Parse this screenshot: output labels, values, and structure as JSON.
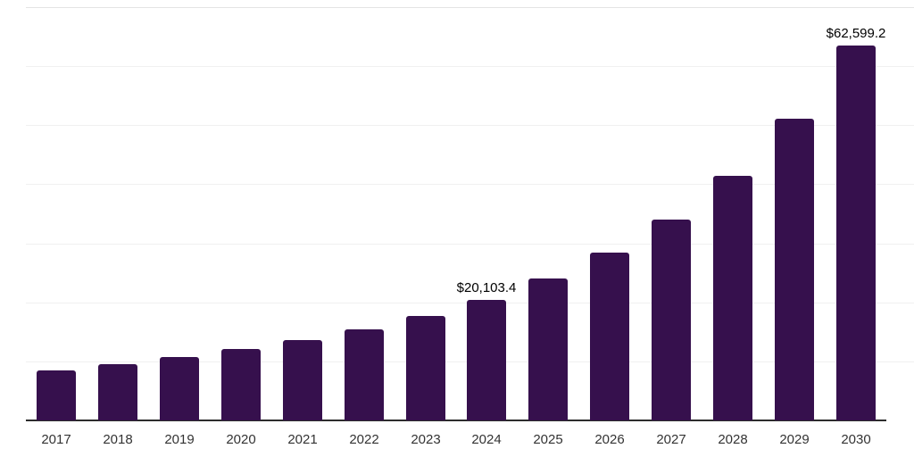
{
  "chart_data": {
    "type": "bar",
    "title": "",
    "xlabel": "",
    "ylabel": "",
    "categories": [
      "2017",
      "2018",
      "2019",
      "2020",
      "2021",
      "2022",
      "2023",
      "2024",
      "2025",
      "2026",
      "2027",
      "2028",
      "2029",
      "2030"
    ],
    "values": [
      8350,
      9390,
      10580,
      11920,
      13420,
      15200,
      17440,
      20103.4,
      23700,
      28020,
      33540,
      40840,
      50380,
      62599.2
    ],
    "value_labels": [
      "",
      "",
      "",
      "",
      "",
      "",
      "",
      "$20,103.4",
      "",
      "",
      "",
      "",
      "",
      "$62,599.2"
    ],
    "ylim": [
      0,
      70000
    ],
    "grid": true,
    "gridline_count": 7,
    "legend": "none",
    "colors": {
      "bar": "#36104d",
      "axis_line": "#2d2d2d",
      "top_gridline": "#e4e4e4",
      "gridline": "#f0f0f0",
      "tick_label": "#333333",
      "value_label": "#000000",
      "background": "#ffffff"
    }
  }
}
